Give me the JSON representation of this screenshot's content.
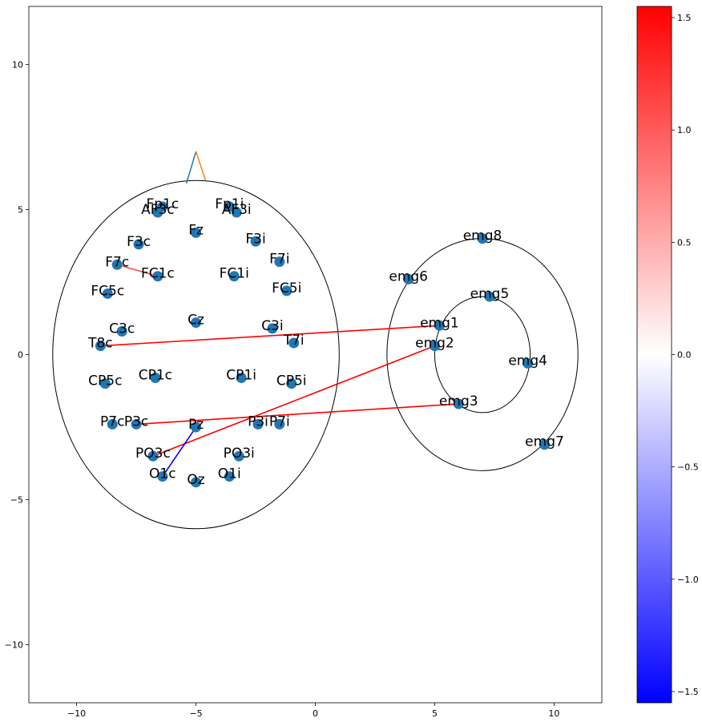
{
  "chart_data": {
    "type": "scatter",
    "title": "",
    "xlabel": "",
    "ylabel": "",
    "xlim": [
      -12,
      12
    ],
    "ylim": [
      -12,
      12
    ],
    "xticks": [
      -10,
      -5,
      0,
      5,
      10
    ],
    "yticks": [
      -10,
      -5,
      0,
      5,
      10
    ],
    "xtick_labels": [
      "−10",
      "−5",
      "0",
      "5",
      "10"
    ],
    "ytick_labels": [
      "−10",
      "−5",
      "0",
      "5",
      "10"
    ],
    "grid": false,
    "marker_color": "#1f77b4",
    "points": [
      {
        "label": "Fp1c",
        "x": -6.4,
        "y": 5.1
      },
      {
        "label": "AF3c",
        "x": -6.6,
        "y": 4.9
      },
      {
        "label": "Fp1i",
        "x": -3.6,
        "y": 5.1
      },
      {
        "label": "AF3i",
        "x": -3.3,
        "y": 4.9
      },
      {
        "label": "Fz",
        "x": -5.0,
        "y": 4.2
      },
      {
        "label": "F3c",
        "x": -7.4,
        "y": 3.8
      },
      {
        "label": "F3i",
        "x": -2.5,
        "y": 3.9
      },
      {
        "label": "F7c",
        "x": -8.3,
        "y": 3.1
      },
      {
        "label": "F7i",
        "x": -1.5,
        "y": 3.2
      },
      {
        "label": "FC1c",
        "x": -6.6,
        "y": 2.7
      },
      {
        "label": "FC1i",
        "x": -3.4,
        "y": 2.7
      },
      {
        "label": "FC5c",
        "x": -8.7,
        "y": 2.1
      },
      {
        "label": "FC5i",
        "x": -1.2,
        "y": 2.2
      },
      {
        "label": "Cz",
        "x": -5.0,
        "y": 1.1
      },
      {
        "label": "C3c",
        "x": -8.1,
        "y": 0.8
      },
      {
        "label": "C3i",
        "x": -1.8,
        "y": 0.9
      },
      {
        "label": "T8c",
        "x": -9.0,
        "y": 0.3
      },
      {
        "label": "T7i",
        "x": -0.9,
        "y": 0.4
      },
      {
        "label": "CP1c",
        "x": -6.7,
        "y": -0.8
      },
      {
        "label": "CP1i",
        "x": -3.1,
        "y": -0.8
      },
      {
        "label": "CP5c",
        "x": -8.8,
        "y": -1.0
      },
      {
        "label": "CP5i",
        "x": -1.0,
        "y": -1.0
      },
      {
        "label": "P7c",
        "x": -8.5,
        "y": -2.4
      },
      {
        "label": "P3c",
        "x": -7.5,
        "y": -2.4
      },
      {
        "label": "Pz",
        "x": -5.0,
        "y": -2.5
      },
      {
        "label": "P3i",
        "x": -2.4,
        "y": -2.4
      },
      {
        "label": "P7i",
        "x": -1.5,
        "y": -2.4
      },
      {
        "label": "PO3c",
        "x": -6.8,
        "y": -3.5
      },
      {
        "label": "PO3i",
        "x": -3.2,
        "y": -3.5
      },
      {
        "label": "O1c",
        "x": -6.4,
        "y": -4.2
      },
      {
        "label": "Oz",
        "x": -5.0,
        "y": -4.4
      },
      {
        "label": "O1i",
        "x": -3.6,
        "y": -4.2
      },
      {
        "label": "emg8",
        "x": 7.0,
        "y": 4.0
      },
      {
        "label": "emg6",
        "x": 3.9,
        "y": 2.6
      },
      {
        "label": "emg5",
        "x": 7.3,
        "y": 2.0
      },
      {
        "label": "emg1",
        "x": 5.2,
        "y": 1.0
      },
      {
        "label": "emg2",
        "x": 5.0,
        "y": 0.3
      },
      {
        "label": "emg4",
        "x": 8.9,
        "y": -0.3
      },
      {
        "label": "emg3",
        "x": 6.0,
        "y": -1.7
      },
      {
        "label": "emg7",
        "x": 9.6,
        "y": -3.1
      }
    ],
    "connections": [
      {
        "from": "F7c",
        "to": "FC1c",
        "value": 1.1
      },
      {
        "from": "T8c",
        "to": "emg1",
        "value": 1.55
      },
      {
        "from": "PO3c",
        "to": "emg2",
        "value": 1.55
      },
      {
        "from": "P3c",
        "to": "emg3",
        "value": 1.55
      },
      {
        "from": "Pz",
        "to": "O1c",
        "value": -1.55
      }
    ],
    "outlines": {
      "head": {
        "cx": -5,
        "cy": 0,
        "rx": 6,
        "ry": 6
      },
      "nose": [
        [
          -5.4,
          5.9
        ],
        [
          -5.0,
          7.0
        ],
        [
          -4.6,
          6.0
        ]
      ],
      "nose_colors": [
        "#1f77b4",
        "#ff7f0e"
      ],
      "emg_outer": {
        "cx": 7,
        "cy": 0,
        "rx": 4,
        "ry": 4
      },
      "emg_inner": {
        "cx": 7,
        "cy": 0,
        "rx": 2,
        "ry": 2
      }
    },
    "colorbar": {
      "cmap": "bwr",
      "range": [
        -1.55,
        1.55
      ],
      "colors": [
        "#0000ff",
        "#ffffff",
        "#ff0000"
      ],
      "ticks": [
        -1.5,
        -1.0,
        -0.5,
        0.0,
        0.5,
        1.0,
        1.5
      ],
      "tick_labels": [
        "−1.5",
        "−1.0",
        "−0.5",
        "0.0",
        "0.5",
        "1.0",
        "1.5"
      ]
    }
  }
}
